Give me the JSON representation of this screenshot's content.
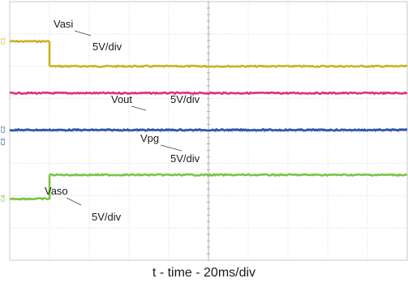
{
  "chart_data": {
    "type": "line",
    "title": "",
    "xlabel": "t - time - 20ms/div",
    "ylabel": "",
    "grid": true,
    "divisions": {
      "x": 10,
      "y": 8
    },
    "series": [
      {
        "name": "Vasi",
        "marker": "C1",
        "scale_label": "5V/div",
        "color": "#c8b424",
        "x_div": [
          0,
          1,
          1,
          10
        ],
        "y_div": [
          1.23,
          1.23,
          2.0,
          2.0
        ]
      },
      {
        "name": "Vout",
        "marker": "",
        "scale_label": "5V/div",
        "color": "#e0307a",
        "x_div": [
          0,
          10
        ],
        "y_div": [
          2.83,
          2.83
        ]
      },
      {
        "name": "Vpg",
        "marker": "C2",
        "scale_label": "5V/div",
        "color": "#2a55b0",
        "x_div": [
          0,
          10
        ],
        "y_div": [
          3.97,
          3.97
        ]
      },
      {
        "name": "Vaso",
        "marker": "C4",
        "scale_label": "5V/div",
        "color": "#7cc444",
        "x_div": [
          0,
          1,
          1,
          10
        ],
        "y_div": [
          6.1,
          6.1,
          5.36,
          5.36
        ]
      }
    ],
    "extra_markers": [
      {
        "text": "C3",
        "color": "#2a55b0",
        "y_div": 4.35
      }
    ]
  }
}
